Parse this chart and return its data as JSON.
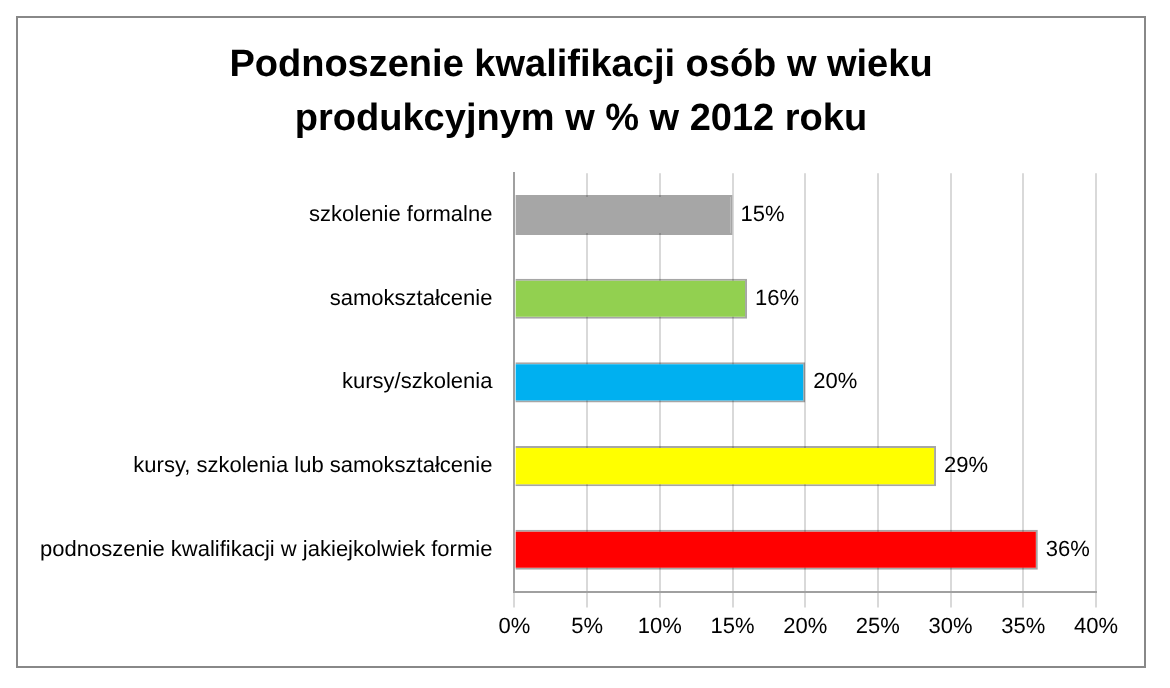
{
  "chart_data": {
    "type": "bar",
    "orientation": "horizontal",
    "title": "Podnoszenie kwalifikacji osób w wieku produkcyjnym w % w 2012 roku",
    "categories": [
      "szkolenie formalne",
      "samokształcenie",
      "kursy/szkolenia",
      "kursy, szkolenia lub samokształcenie",
      "podnoszenie kwalifikacji w jakiejkolwiek formie"
    ],
    "values": [
      15,
      16,
      20,
      29,
      36
    ],
    "colors": [
      "#a6a6a6",
      "#92d050",
      "#00b0f0",
      "#ffff00",
      "#ff0000"
    ],
    "value_labels": [
      "15%",
      "16%",
      "20%",
      "29%",
      "36%"
    ],
    "xlim": [
      0,
      40
    ],
    "xticks": [
      {
        "value": 0,
        "label": "0%"
      },
      {
        "value": 5,
        "label": "5%"
      },
      {
        "value": 10,
        "label": "10%"
      },
      {
        "value": 15,
        "label": "15%"
      },
      {
        "value": 20,
        "label": "20%"
      },
      {
        "value": 25,
        "label": "25%"
      },
      {
        "value": 30,
        "label": "30%"
      },
      {
        "value": 35,
        "label": "35%"
      },
      {
        "value": 40,
        "label": "40%"
      }
    ],
    "grid": "x",
    "legend": false
  }
}
